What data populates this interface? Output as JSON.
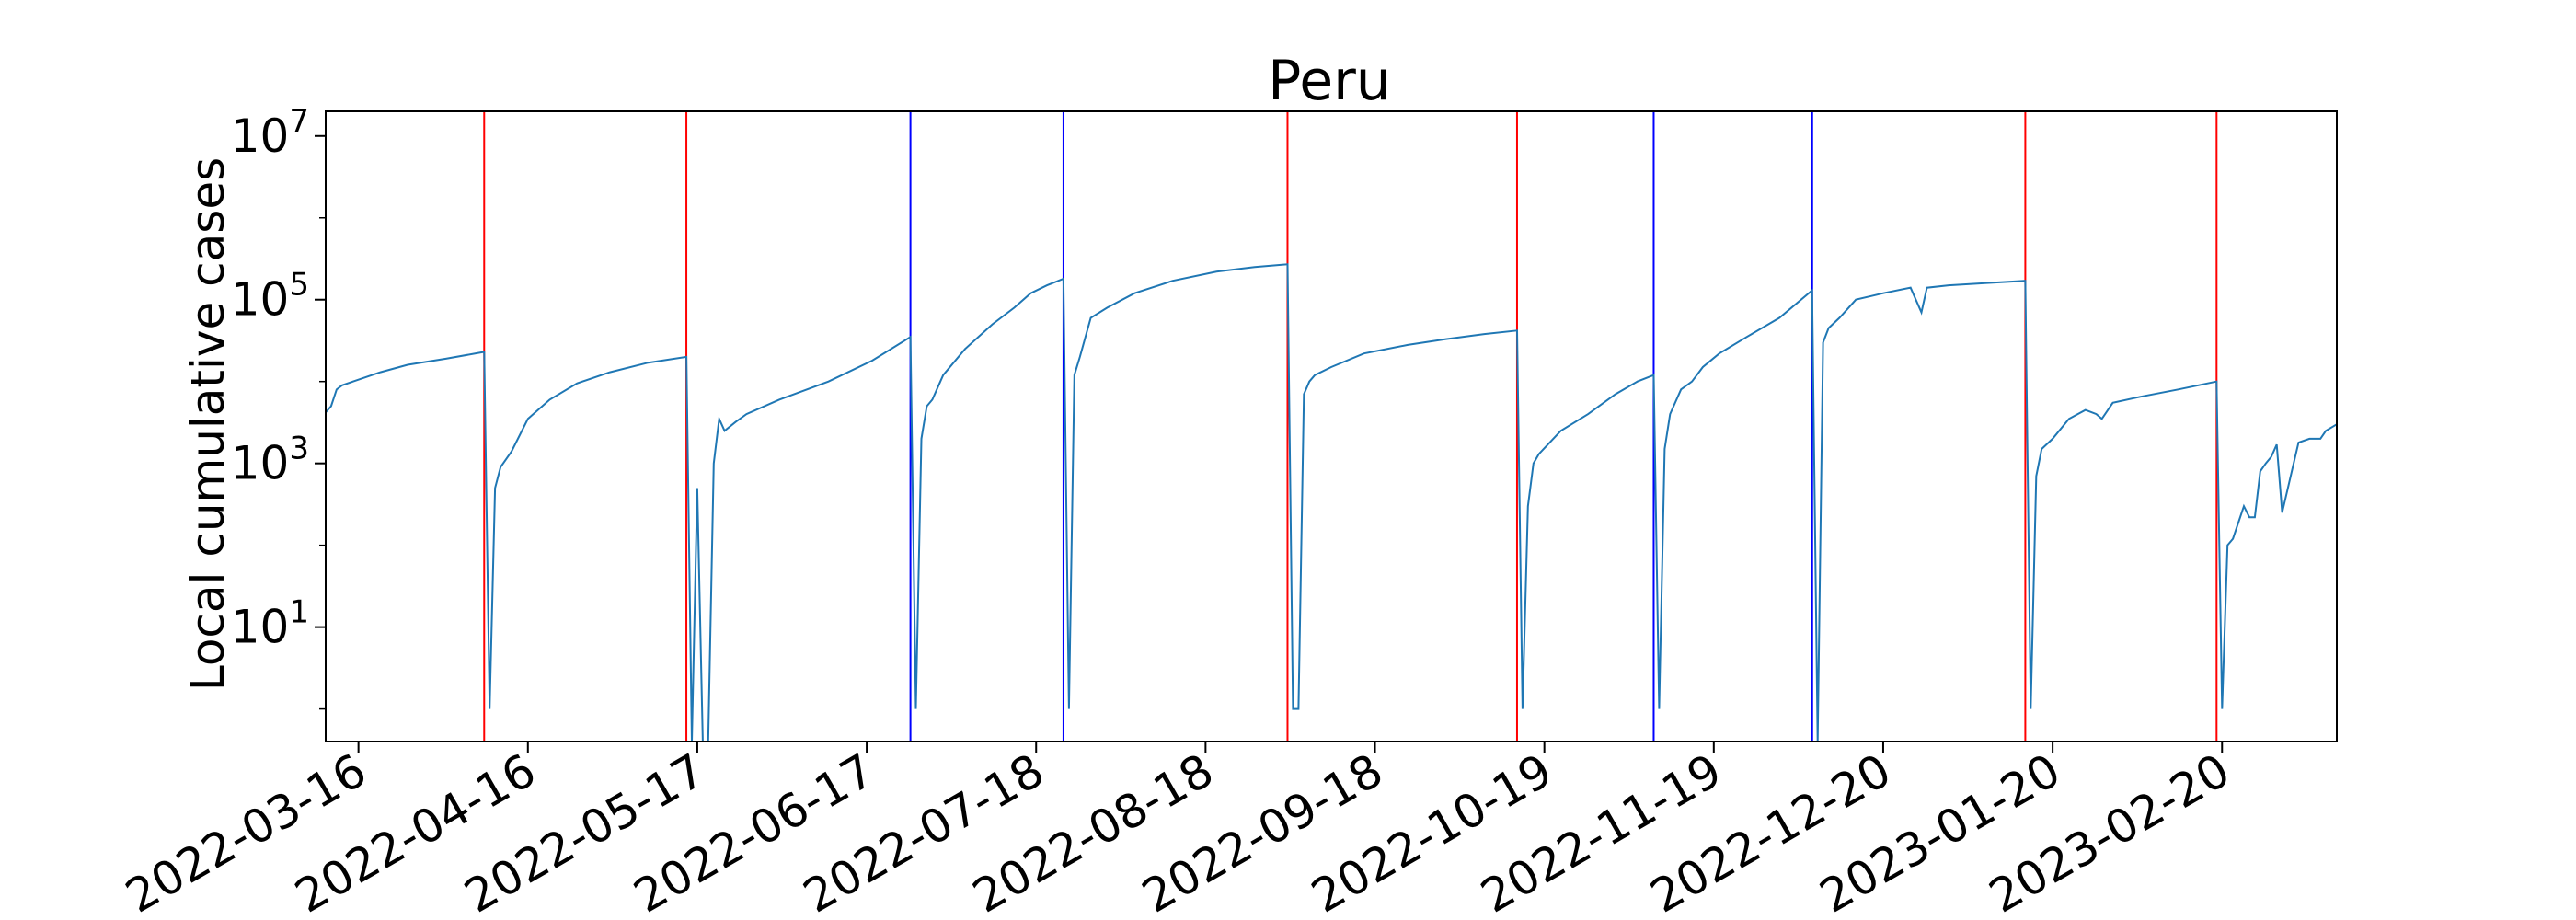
{
  "chart_data": {
    "type": "line",
    "title": "Peru",
    "ylabel": "Local cumulative cases",
    "xlabel": "",
    "yscale": "log",
    "x_range": [
      "2022-03-10",
      "2023-03-13"
    ],
    "ylim": [
      0.4,
      20000000
    ],
    "y_ticks": [
      {
        "value": 10,
        "base": "10",
        "exp": "1"
      },
      {
        "value": 1000,
        "base": "10",
        "exp": "3"
      },
      {
        "value": 100000,
        "base": "10",
        "exp": "5"
      },
      {
        "value": 10000000,
        "base": "10",
        "exp": "7"
      }
    ],
    "x_ticks": [
      "2022-03-16",
      "2022-04-16",
      "2022-05-17",
      "2022-06-17",
      "2022-07-18",
      "2022-08-18",
      "2022-09-18",
      "2022-10-19",
      "2022-11-19",
      "2022-12-20",
      "2023-01-20",
      "2023-02-20"
    ],
    "grid": false,
    "line_color": "#1f77b4",
    "vertical_lines": [
      {
        "date": "2022-04-08",
        "color": "#ff0000"
      },
      {
        "date": "2022-05-15",
        "color": "#ff0000"
      },
      {
        "date": "2022-06-25",
        "color": "#0000ff"
      },
      {
        "date": "2022-07-23",
        "color": "#0000ff"
      },
      {
        "date": "2022-09-02",
        "color": "#ff0000"
      },
      {
        "date": "2022-10-14",
        "color": "#ff0000"
      },
      {
        "date": "2022-11-08",
        "color": "#0000ff"
      },
      {
        "date": "2022-12-07",
        "color": "#0000ff"
      },
      {
        "date": "2023-01-15",
        "color": "#ff0000"
      },
      {
        "date": "2023-02-19",
        "color": "#ff0000"
      }
    ],
    "series": [
      {
        "x": [
          "2022-03-10",
          "2022-03-11",
          "2022-03-12",
          "2022-03-13",
          "2022-03-15",
          "2022-03-20",
          "2022-03-25",
          "2022-04-01",
          "2022-04-08",
          "2022-04-09",
          "2022-04-10",
          "2022-04-11",
          "2022-04-13",
          "2022-04-16",
          "2022-04-20",
          "2022-04-25",
          "2022-05-01",
          "2022-05-08",
          "2022-05-15",
          "2022-05-16",
          "2022-05-17",
          "2022-05-18",
          "2022-05-19",
          "2022-05-20",
          "2022-05-21",
          "2022-05-22",
          "2022-05-24",
          "2022-05-26",
          "2022-06-01",
          "2022-06-10",
          "2022-06-18",
          "2022-06-25",
          "2022-06-26",
          "2022-06-27",
          "2022-06-28",
          "2022-06-29",
          "2022-07-01",
          "2022-07-05",
          "2022-07-10",
          "2022-07-14",
          "2022-07-17",
          "2022-07-20",
          "2022-07-23",
          "2022-07-24",
          "2022-07-25",
          "2022-07-26",
          "2022-07-28",
          "2022-07-31",
          "2022-08-05",
          "2022-08-12",
          "2022-08-20",
          "2022-08-27",
          "2022-09-02",
          "2022-09-03",
          "2022-09-04",
          "2022-09-05",
          "2022-09-06",
          "2022-09-07",
          "2022-09-10",
          "2022-09-16",
          "2022-09-24",
          "2022-10-01",
          "2022-10-08",
          "2022-10-14",
          "2022-10-15",
          "2022-10-16",
          "2022-10-17",
          "2022-10-18",
          "2022-10-22",
          "2022-10-27",
          "2022-11-01",
          "2022-11-05",
          "2022-11-08",
          "2022-11-09",
          "2022-11-10",
          "2022-11-11",
          "2022-11-13",
          "2022-11-15",
          "2022-11-17",
          "2022-11-20",
          "2022-11-25",
          "2022-12-01",
          "2022-12-07",
          "2022-12-08",
          "2022-12-09",
          "2022-12-10",
          "2022-12-12",
          "2022-12-15",
          "2022-12-20",
          "2022-12-25",
          "2022-12-27",
          "2022-12-28",
          "2023-01-01",
          "2023-01-08",
          "2023-01-15",
          "2023-01-16",
          "2023-01-17",
          "2023-01-18",
          "2023-01-20",
          "2023-01-23",
          "2023-01-26",
          "2023-01-28",
          "2023-01-29",
          "2023-01-31",
          "2023-02-05",
          "2023-02-12",
          "2023-02-19",
          "2023-02-20",
          "2023-02-21",
          "2023-02-22",
          "2023-02-24",
          "2023-02-25",
          "2023-02-26",
          "2023-02-27",
          "2023-02-28",
          "2023-03-01",
          "2023-03-02",
          "2023-03-03",
          "2023-03-06",
          "2023-03-08",
          "2023-03-09",
          "2023-03-10",
          "2023-03-11",
          "2023-03-13"
        ],
        "y": [
          4200,
          5000,
          8000,
          9000,
          10000,
          13000,
          16000,
          19000,
          23000,
          1,
          500,
          900,
          1400,
          3500,
          6000,
          9500,
          13000,
          17000,
          20000,
          0.1,
          500,
          0.1,
          0.1,
          1000,
          3500,
          2500,
          3200,
          4000,
          6000,
          10000,
          18000,
          35000,
          1,
          2000,
          5000,
          6000,
          12000,
          25000,
          50000,
          80000,
          120000,
          150000,
          180000,
          1,
          12000,
          20000,
          60000,
          80000,
          120000,
          170000,
          220000,
          250000,
          270000,
          1,
          1,
          7000,
          10000,
          12000,
          15000,
          22000,
          28000,
          33000,
          38000,
          42000,
          1,
          300,
          1000,
          1300,
          2500,
          4000,
          7000,
          10000,
          12000,
          1,
          1500,
          4000,
          8000,
          10000,
          15000,
          22000,
          35000,
          60000,
          130000,
          0.1,
          30000,
          45000,
          60000,
          100000,
          120000,
          140000,
          70000,
          140000,
          150000,
          160000,
          170000,
          1,
          700,
          1500,
          2000,
          3500,
          4500,
          4000,
          3500,
          5500,
          6500,
          8000,
          10000,
          1,
          100,
          120,
          300,
          220,
          220,
          800,
          1000,
          1200,
          1700,
          250,
          1800,
          2000,
          2000,
          2000,
          2500,
          3000
        ],
        "name": ""
      }
    ]
  }
}
